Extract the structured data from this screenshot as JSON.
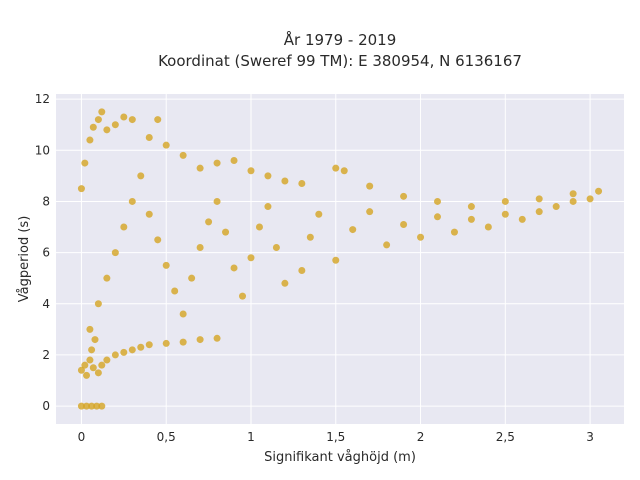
{
  "chart_data": {
    "type": "scatter",
    "title_line1": "År 1979 - 2019",
    "title_line2": "Koordinat (Sweref 99 TM): E 380954, N 6136167",
    "xlabel": "Signifikant våghöjd (m)",
    "ylabel": "Vågperiod (s)",
    "xlim": [
      -0.15,
      3.2
    ],
    "ylim": [
      -0.7,
      12.2
    ],
    "x_ticks": [
      0,
      0.5,
      1,
      1.5,
      2,
      2.5,
      3
    ],
    "x_tick_labels": [
      "0",
      "0,5",
      "1",
      "1,5",
      "2",
      "2,5",
      "3"
    ],
    "y_ticks": [
      0,
      2,
      4,
      6,
      8,
      10,
      12
    ],
    "y_tick_labels": [
      "0",
      "2",
      "4",
      "6",
      "8",
      "10",
      "12"
    ],
    "grid": true,
    "legend": "none",
    "marker_color": "#d4a422",
    "background_color": "#e8e8f2",
    "series": [
      {
        "points": [
          [
            0.0,
            0.0
          ],
          [
            0.03,
            0.0
          ],
          [
            0.06,
            0.0
          ],
          [
            0.09,
            0.0
          ],
          [
            0.12,
            0.0
          ],
          [
            0.0,
            1.4
          ],
          [
            0.02,
            1.6
          ],
          [
            0.03,
            1.2
          ],
          [
            0.05,
            1.8
          ],
          [
            0.06,
            2.2
          ],
          [
            0.07,
            1.5
          ],
          [
            0.08,
            2.6
          ],
          [
            0.1,
            1.3
          ],
          [
            0.12,
            1.6
          ],
          [
            0.15,
            1.8
          ],
          [
            0.2,
            2.0
          ],
          [
            0.25,
            2.1
          ],
          [
            0.3,
            2.2
          ],
          [
            0.35,
            2.3
          ],
          [
            0.4,
            2.4
          ],
          [
            0.5,
            2.45
          ],
          [
            0.6,
            2.5
          ],
          [
            0.7,
            2.6
          ],
          [
            0.8,
            2.65
          ],
          [
            0.0,
            8.5
          ],
          [
            0.02,
            9.5
          ],
          [
            0.05,
            10.4
          ],
          [
            0.07,
            10.9
          ],
          [
            0.1,
            11.2
          ],
          [
            0.12,
            11.5
          ],
          [
            0.15,
            10.8
          ],
          [
            0.2,
            11.0
          ],
          [
            0.25,
            11.3
          ],
          [
            0.3,
            11.2
          ],
          [
            0.4,
            10.5
          ],
          [
            0.45,
            11.2
          ],
          [
            0.5,
            10.2
          ],
          [
            0.6,
            9.8
          ],
          [
            0.7,
            9.3
          ],
          [
            0.8,
            9.5
          ],
          [
            0.9,
            9.6
          ],
          [
            1.0,
            9.2
          ],
          [
            1.1,
            9.0
          ],
          [
            1.2,
            8.8
          ],
          [
            1.3,
            8.7
          ],
          [
            1.5,
            9.3
          ],
          [
            1.55,
            9.2
          ],
          [
            1.7,
            8.6
          ],
          [
            1.9,
            8.2
          ],
          [
            2.1,
            8.0
          ],
          [
            2.3,
            7.8
          ],
          [
            2.5,
            8.0
          ],
          [
            2.7,
            8.1
          ],
          [
            2.9,
            8.3
          ],
          [
            3.05,
            8.4
          ],
          [
            0.05,
            3.0
          ],
          [
            0.1,
            4.0
          ],
          [
            0.15,
            5.0
          ],
          [
            0.2,
            6.0
          ],
          [
            0.25,
            7.0
          ],
          [
            0.3,
            8.0
          ],
          [
            0.35,
            9.0
          ],
          [
            0.4,
            7.5
          ],
          [
            0.45,
            6.5
          ],
          [
            0.5,
            5.5
          ],
          [
            0.55,
            4.5
          ],
          [
            0.6,
            3.6
          ],
          [
            0.65,
            5.0
          ],
          [
            0.7,
            6.2
          ],
          [
            0.75,
            7.2
          ],
          [
            0.8,
            8.0
          ],
          [
            0.85,
            6.8
          ],
          [
            0.9,
            5.4
          ],
          [
            0.95,
            4.3
          ],
          [
            1.0,
            5.8
          ],
          [
            1.05,
            7.0
          ],
          [
            1.1,
            7.8
          ],
          [
            1.15,
            6.2
          ],
          [
            1.2,
            4.8
          ],
          [
            1.3,
            5.3
          ],
          [
            1.35,
            6.6
          ],
          [
            1.4,
            7.5
          ],
          [
            1.5,
            5.7
          ],
          [
            1.6,
            6.9
          ],
          [
            1.7,
            7.6
          ],
          [
            1.8,
            6.3
          ],
          [
            1.9,
            7.1
          ],
          [
            2.0,
            6.6
          ],
          [
            2.1,
            7.4
          ],
          [
            2.2,
            6.8
          ],
          [
            2.3,
            7.3
          ],
          [
            2.4,
            7.0
          ],
          [
            2.5,
            7.5
          ],
          [
            2.6,
            7.3
          ],
          [
            2.7,
            7.6
          ],
          [
            2.8,
            7.8
          ],
          [
            2.9,
            8.0
          ],
          [
            3.0,
            8.1
          ]
        ]
      }
    ]
  }
}
